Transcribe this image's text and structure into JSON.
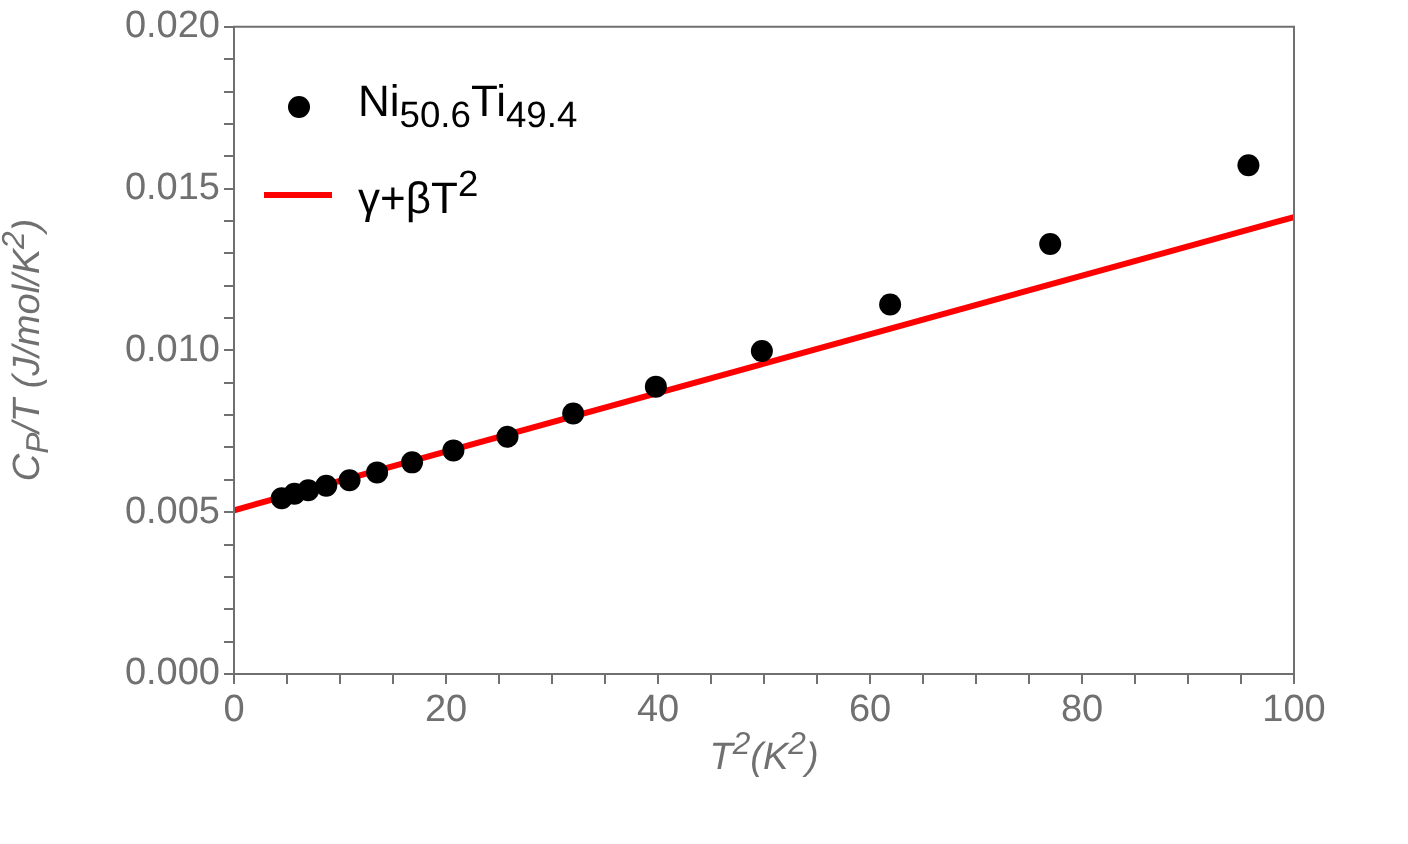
{
  "chart_data": {
    "type": "scatter",
    "xlabel": "T$^{2}$(K$^{2}$)",
    "ylabel": "C$_{P}$/T (J/mol/K$^{2}$)",
    "xlim": [
      0,
      100
    ],
    "ylim": [
      0,
      0.02
    ],
    "xticks": [
      0,
      {
        "value": 5,
        "label": null
      },
      {
        "value": 10,
        "label": null
      },
      {
        "value": 15,
        "label": null
      },
      20,
      {
        "value": 25,
        "label": null
      },
      {
        "value": 30,
        "label": null
      },
      {
        "value": 35,
        "label": null
      },
      40,
      {
        "value": 45,
        "label": null
      },
      {
        "value": 50,
        "label": null
      },
      {
        "value": 55,
        "label": null
      },
      60,
      {
        "value": 65,
        "label": null
      },
      {
        "value": 70,
        "label": null
      },
      {
        "value": 75,
        "label": null
      },
      80,
      {
        "value": 85,
        "label": null
      },
      {
        "value": 90,
        "label": null
      },
      {
        "value": 95,
        "label": null
      },
      100
    ],
    "yticks": [
      {
        "value": 0,
        "label": "0.000"
      },
      {
        "value": 0.001,
        "label": null
      },
      {
        "value": 0.002,
        "label": null
      },
      {
        "value": 0.003,
        "label": null
      },
      {
        "value": 0.004,
        "label": null
      },
      {
        "value": 0.005,
        "label": "0.005"
      },
      {
        "value": 0.006,
        "label": null
      },
      {
        "value": 0.007,
        "label": null
      },
      {
        "value": 0.008,
        "label": null
      },
      {
        "value": 0.009,
        "label": null
      },
      {
        "value": 0.01,
        "label": "0.010"
      },
      {
        "value": 0.011,
        "label": null
      },
      {
        "value": 0.012,
        "label": null
      },
      {
        "value": 0.013,
        "label": null
      },
      {
        "value": 0.014,
        "label": null
      },
      {
        "value": 0.015,
        "label": "0.015"
      },
      {
        "value": 0.016,
        "label": null
      },
      {
        "value": 0.017,
        "label": null
      },
      {
        "value": 0.018,
        "label": null
      },
      {
        "value": 0.019,
        "label": null
      },
      {
        "value": 0.02,
        "label": "0.020"
      }
    ],
    "legend": "top left",
    "grid": false,
    "series": [
      {
        "name": "Ni$_{50.6}$Ti$_{49.4}$",
        "marker": "circle",
        "color": "#000000",
        "x": [
          4.5,
          5.7,
          7.0,
          8.7,
          10.9,
          13.5,
          16.8,
          20.7,
          25.8,
          32.0,
          39.8,
          49.8,
          61.9,
          77.0,
          95.7
        ],
        "values": [
          0.00543,
          0.00557,
          0.00568,
          0.00582,
          0.00599,
          0.00623,
          0.00654,
          0.00691,
          0.00733,
          0.00805,
          0.00888,
          0.00998,
          0.01142,
          0.01329,
          0.01572
        ]
      },
      {
        "name": "γ+βT$^{2}$",
        "type": "line",
        "marker": "none",
        "line_style": "solid",
        "color": "#ff0000",
        "x": [
          0,
          100
        ],
        "values": [
          0.00506,
          0.01412
        ]
      }
    ]
  }
}
